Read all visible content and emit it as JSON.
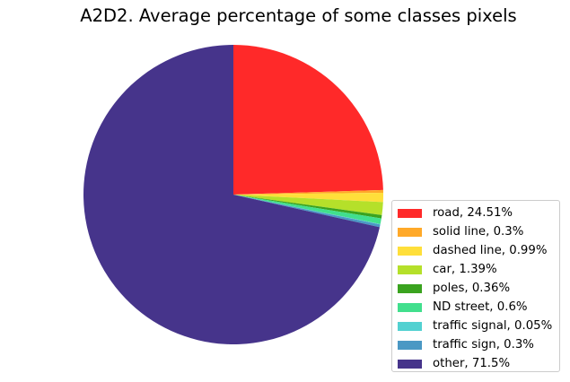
{
  "chart_data": {
    "type": "pie",
    "title": "A2D2. Average percentage of some classes pixels",
    "start_angle_deg": 90,
    "direction": "clockwise",
    "legend_position": "lower-right",
    "slices": [
      {
        "label": "road, 24.51%",
        "value": 24.51,
        "color": "#ff2929"
      },
      {
        "label": "solid line, 0.3%",
        "value": 0.3,
        "color": "#ffa929"
      },
      {
        "label": "dashed line, 0.99%",
        "value": 0.99,
        "color": "#ffdf3a"
      },
      {
        "label": "car, 1.39%",
        "value": 1.39,
        "color": "#b5e02a"
      },
      {
        "label": "poles, 0.36%",
        "value": 0.36,
        "color": "#3aa31f"
      },
      {
        "label": "ND street, 0.6%",
        "value": 0.6,
        "color": "#41df8d"
      },
      {
        "label": "traffic signal, 0.05%",
        "value": 0.05,
        "color": "#52d1d1"
      },
      {
        "label": "traffic sign, 0.3%",
        "value": 0.3,
        "color": "#4a98c4"
      },
      {
        "label": "other, 71.5%",
        "value": 71.5,
        "color": "#46348b"
      }
    ]
  }
}
